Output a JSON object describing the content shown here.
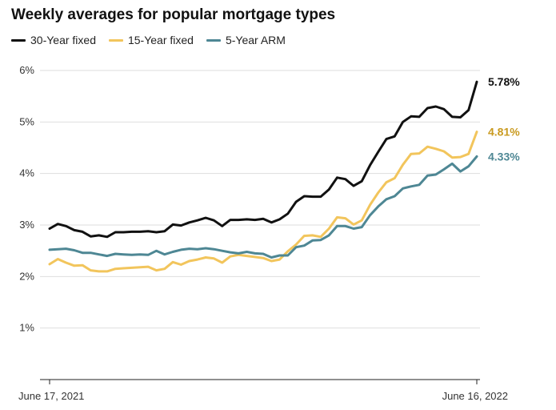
{
  "chart_data": {
    "type": "line",
    "title": "Weekly averages for popular mortgage types",
    "xlabel": "",
    "ylabel": "",
    "ylim": [
      0,
      6
    ],
    "yticks": [
      1,
      2,
      3,
      4,
      5,
      6
    ],
    "ytick_labels": [
      "1%",
      "2%",
      "3%",
      "4%",
      "5%",
      "6%"
    ],
    "x_start_label": "June 17, 2021",
    "x_end_label": "June 16, 2022",
    "grid": "horizontal",
    "legend_position": "top-left",
    "series": [
      {
        "name": "30-Year fixed",
        "color": "#111111",
        "end_label": "5.78%",
        "values": [
          2.93,
          3.02,
          2.98,
          2.9,
          2.87,
          2.78,
          2.8,
          2.77,
          2.86,
          2.86,
          2.87,
          2.87,
          2.88,
          2.86,
          2.88,
          3.01,
          2.99,
          3.05,
          3.09,
          3.14,
          3.09,
          2.98,
          3.1,
          3.1,
          3.11,
          3.1,
          3.12,
          3.05,
          3.11,
          3.22,
          3.45,
          3.56,
          3.55,
          3.55,
          3.69,
          3.92,
          3.89,
          3.76,
          3.85,
          4.16,
          4.42,
          4.67,
          4.72,
          5.0,
          5.11,
          5.1,
          5.27,
          5.3,
          5.25,
          5.1,
          5.09,
          5.23,
          5.78
        ]
      },
      {
        "name": "15-Year fixed",
        "color": "#f2c55c",
        "end_label": "4.81%",
        "values": [
          2.24,
          2.34,
          2.27,
          2.21,
          2.22,
          2.12,
          2.1,
          2.1,
          2.15,
          2.16,
          2.17,
          2.18,
          2.19,
          2.12,
          2.15,
          2.28,
          2.23,
          2.3,
          2.33,
          2.37,
          2.35,
          2.27,
          2.39,
          2.42,
          2.4,
          2.38,
          2.36,
          2.3,
          2.33,
          2.49,
          2.62,
          2.79,
          2.8,
          2.77,
          2.93,
          3.15,
          3.13,
          3.01,
          3.09,
          3.39,
          3.63,
          3.83,
          3.91,
          4.17,
          4.38,
          4.39,
          4.52,
          4.48,
          4.43,
          4.31,
          4.32,
          4.38,
          4.81
        ]
      },
      {
        "name": "5-Year ARM",
        "color": "#4e8794",
        "end_label": "4.33%",
        "values": [
          2.52,
          2.53,
          2.54,
          2.51,
          2.46,
          2.46,
          2.43,
          2.4,
          2.44,
          2.43,
          2.42,
          2.43,
          2.42,
          2.5,
          2.43,
          2.48,
          2.52,
          2.54,
          2.53,
          2.55,
          2.53,
          2.5,
          2.47,
          2.45,
          2.48,
          2.45,
          2.44,
          2.37,
          2.41,
          2.41,
          2.57,
          2.6,
          2.7,
          2.71,
          2.8,
          2.98,
          2.98,
          2.93,
          2.96,
          3.19,
          3.36,
          3.5,
          3.56,
          3.71,
          3.75,
          3.78,
          3.96,
          3.98,
          4.08,
          4.19,
          4.04,
          4.14,
          4.33
        ]
      }
    ]
  }
}
